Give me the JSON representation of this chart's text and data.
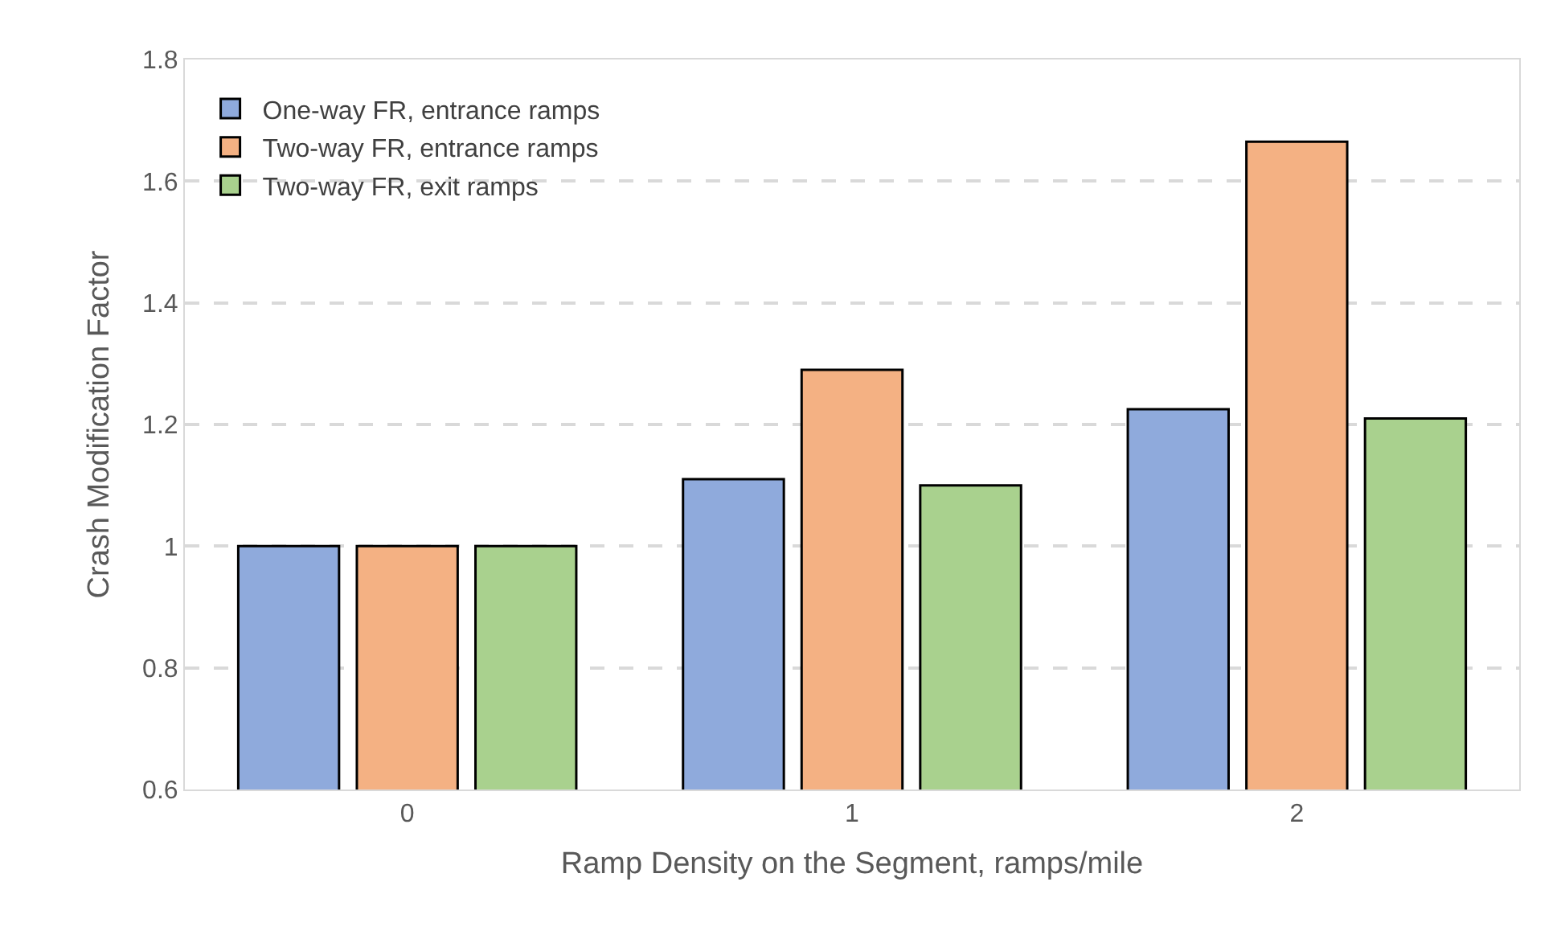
{
  "chart_data": {
    "type": "bar",
    "xlabel": "Ramp Density on the Segment, ramps/mile",
    "ylabel": "Crash Modification Factor",
    "categories": [
      "0",
      "1",
      "2"
    ],
    "series": [
      {
        "name": "One-way FR, entrance ramps",
        "color": "#8faadc",
        "values": [
          1.0,
          1.11,
          1.225
        ]
      },
      {
        "name": "Two-way FR, entrance ramps",
        "color": "#f4b183",
        "values": [
          1.0,
          1.29,
          1.665
        ]
      },
      {
        "name": "Two-way FR, exit ramps",
        "color": "#a9d18e",
        "values": [
          1.0,
          1.1,
          1.21
        ]
      }
    ],
    "ylim": [
      0.6,
      1.8
    ],
    "yticks": [
      0.6,
      0.8,
      1,
      1.2,
      1.4,
      1.6,
      1.8
    ],
    "grid": "y",
    "legend": "top left"
  }
}
